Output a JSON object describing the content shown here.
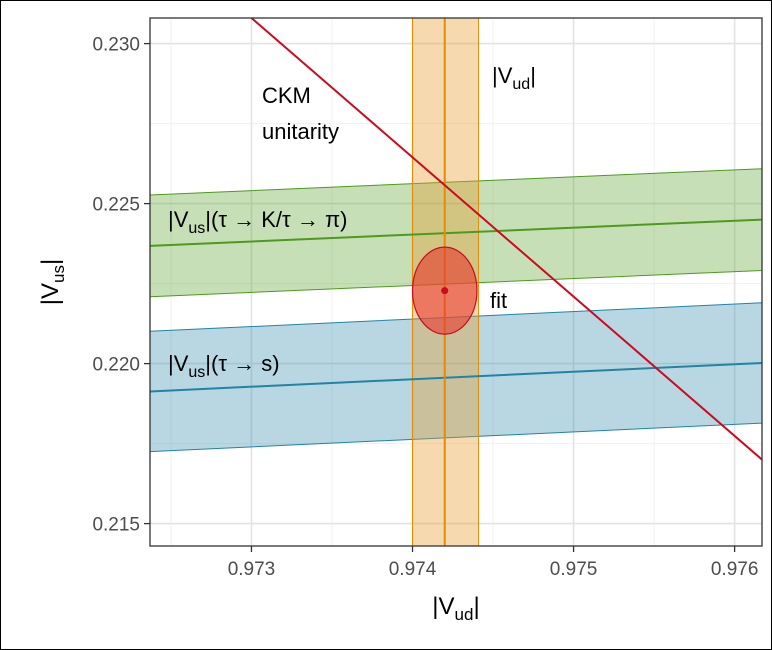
{
  "chart_data": {
    "type": "scatter",
    "xlabel": "|V_ud|",
    "ylabel": "|V_us|",
    "xlim": [
      0.97237,
      0.97617
    ],
    "ylim": [
      0.2143,
      0.2308
    ],
    "x_ticks": [
      "0.973",
      "0.974",
      "0.975",
      "0.976"
    ],
    "y_ticks": [
      "0.215",
      "0.220",
      "0.225",
      "0.230"
    ],
    "grid": true,
    "bands": [
      {
        "name": "|V_us|(τ → K/τ → π)",
        "orientation": "sloped",
        "center": [
          [
            0.97237,
            0.22368
          ],
          [
            0.97617,
            0.2245
          ]
        ],
        "upper": [
          [
            0.97237,
            0.22527
          ],
          [
            0.97617,
            0.22609
          ]
        ],
        "lower": [
          [
            0.97237,
            0.22209
          ],
          [
            0.97617,
            0.22291
          ]
        ],
        "color": "#4d9a1e"
      },
      {
        "name": "|V_us|(τ → s)",
        "orientation": "sloped",
        "center": [
          [
            0.97237,
            0.21913
          ],
          [
            0.97617,
            0.22002
          ]
        ],
        "upper": [
          [
            0.97237,
            0.22101
          ],
          [
            0.97617,
            0.2219
          ]
        ],
        "lower": [
          [
            0.97237,
            0.21725
          ],
          [
            0.97617,
            0.21814
          ]
        ],
        "color": "#2283a6"
      },
      {
        "name": "|V_ud|",
        "orientation": "vertical",
        "center_x": 0.9742,
        "low_x": 0.974,
        "high_x": 0.97441,
        "color": "#e08c0a"
      }
    ],
    "unitarity_line": {
      "name": "CKM unitarity",
      "points": [
        [
          0.973,
          0.2308
        ],
        [
          0.97617,
          0.217
        ]
      ],
      "color": "#cc0a1e"
    },
    "fit": {
      "name": "fit",
      "x": 0.9742,
      "y": 0.22228,
      "sx": 0.0002,
      "sy": 0.00136,
      "color": "#cc0a1e"
    },
    "labels": {
      "ckm_line1": "CKM",
      "ckm_line2": "unitarity",
      "vud": "|V_ud|",
      "tauk_prefix": "|V_us|(τ → K/τ → π)",
      "taus": "|V_us|(τ → s)",
      "fit": "fit"
    }
  }
}
